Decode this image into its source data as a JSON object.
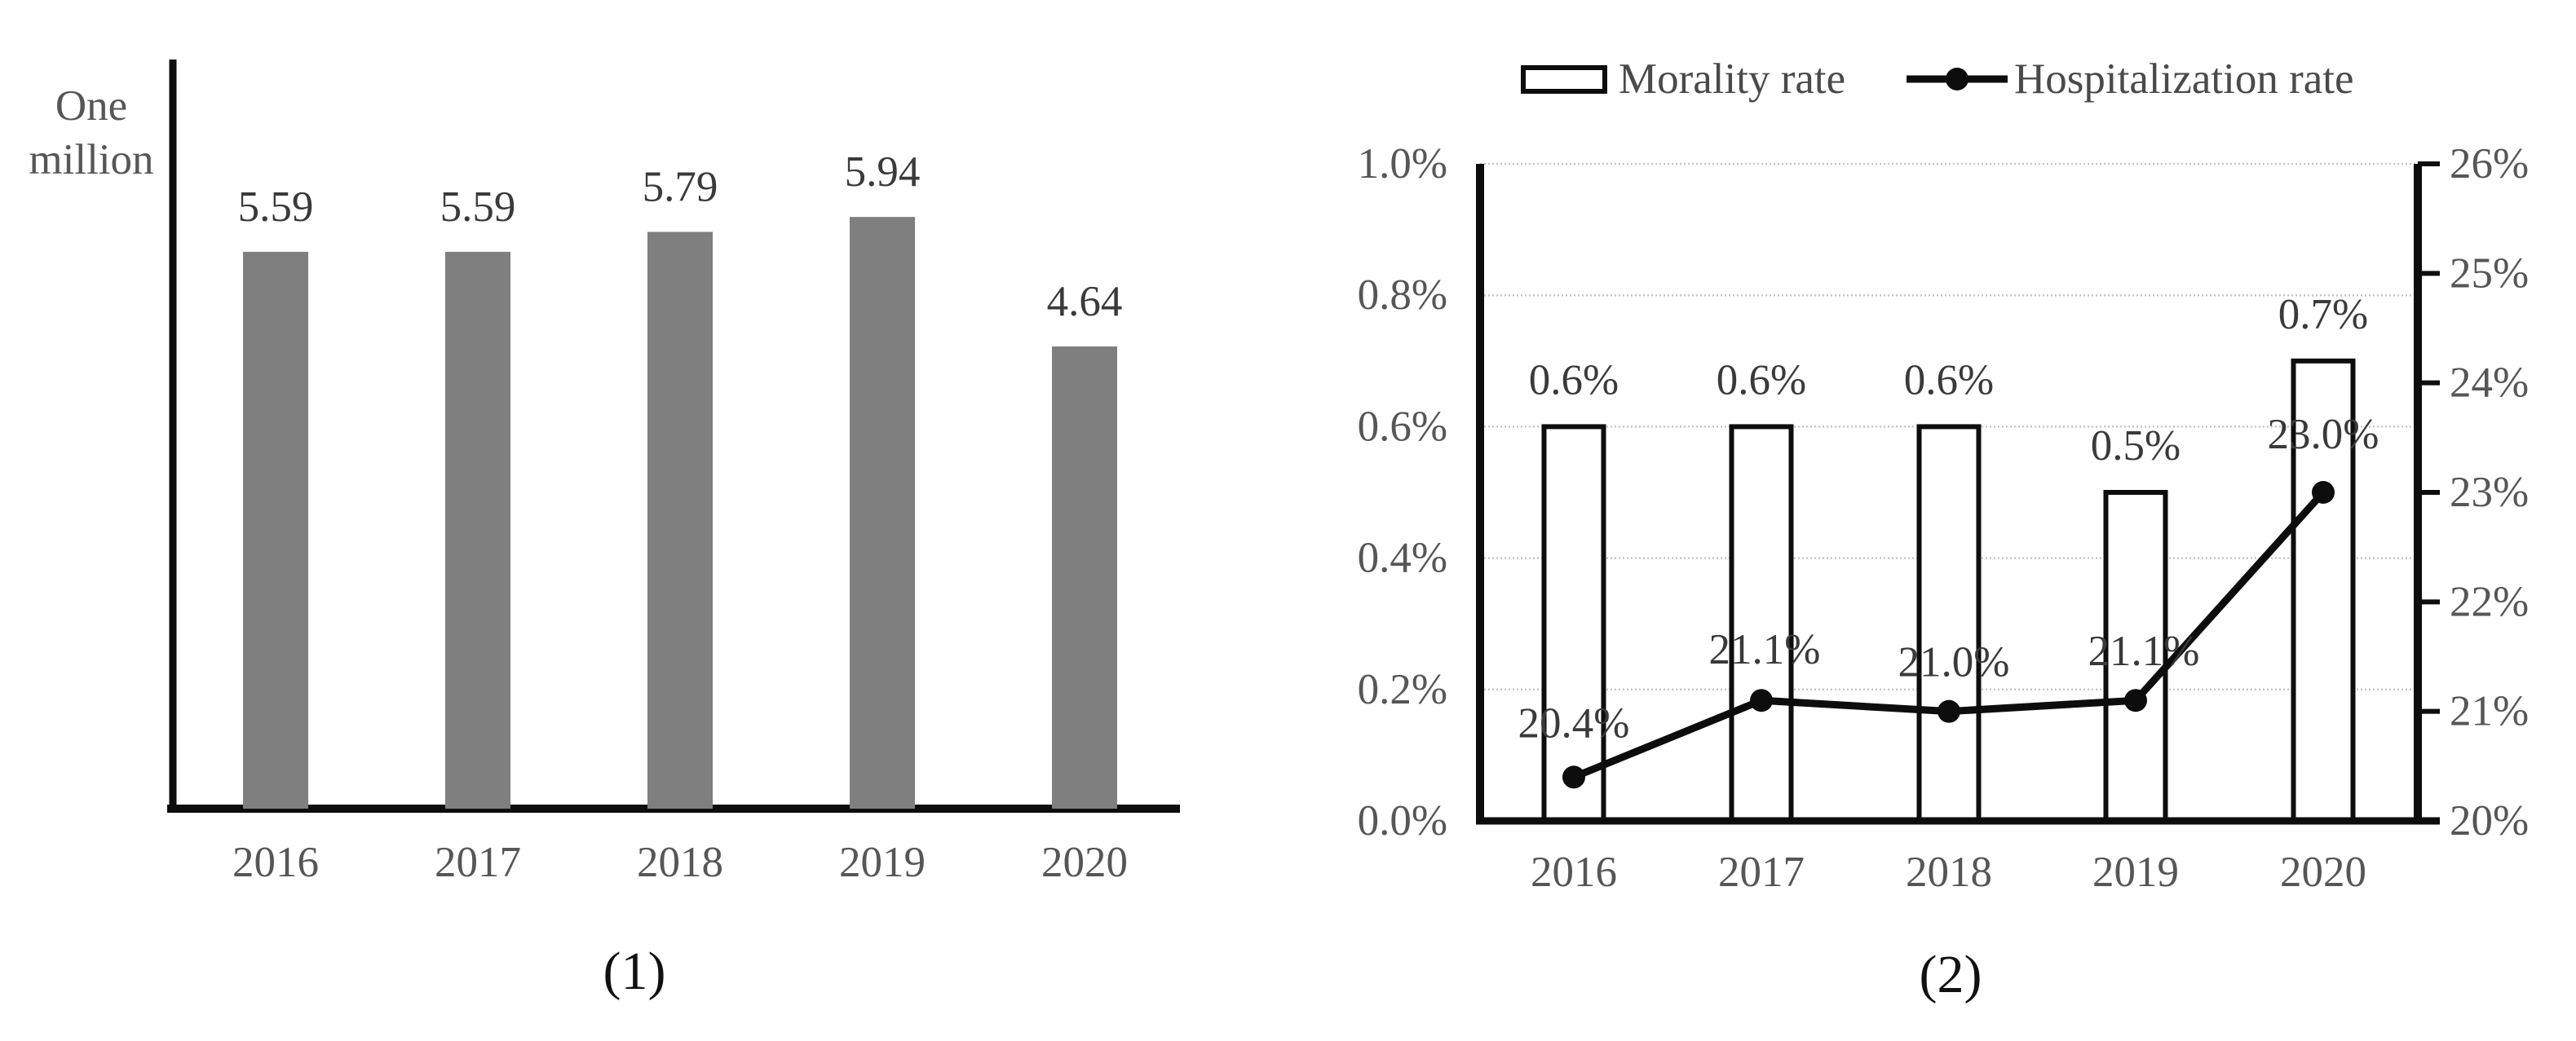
{
  "page": {
    "background": "#ffffff"
  },
  "chart_data": [
    {
      "type": "bar",
      "caption": "(1)",
      "y_unit_label_lines": [
        "One",
        "million"
      ],
      "categories": [
        "2016",
        "2017",
        "2018",
        "2019",
        "2020"
      ],
      "values": [
        5.59,
        5.59,
        5.79,
        5.94,
        4.64
      ],
      "data_labels": [
        "5.59",
        "5.59",
        "5.79",
        "5.94",
        "4.64"
      ],
      "bar_color": "#7f7f7f",
      "axis_color": "#0d0d0d",
      "label_color": "#3a3a3a",
      "tick_label_color": "#565656",
      "xlabel": "",
      "ylabel": "One million",
      "ylim": [
        0,
        7.5
      ],
      "grid": false,
      "legend_position": "none"
    },
    {
      "type": "combo-bar-line",
      "caption": "(2)",
      "categories": [
        "2016",
        "2017",
        "2018",
        "2019",
        "2020"
      ],
      "series": [
        {
          "name": "Morality rate",
          "type": "bar",
          "axis": "left",
          "values": [
            0.6,
            0.6,
            0.6,
            0.5,
            0.7
          ],
          "data_labels": [
            "0.6%",
            "0.6%",
            "0.6%",
            "0.5%",
            "0.7%"
          ],
          "fill": "#ffffff",
          "stroke": "#0d0d0d"
        },
        {
          "name": "Hospitalization rate",
          "type": "line",
          "axis": "right",
          "values": [
            20.4,
            21.1,
            21.0,
            21.1,
            23.0
          ],
          "data_labels": [
            "20.4%",
            "21.1%",
            "21.0%",
            "21.1%",
            "23.0%"
          ],
          "color": "#0d0d0d",
          "marker": "circle"
        }
      ],
      "left_axis": {
        "min": 0.0,
        "max": 1.0,
        "tick_labels": [
          "1.0%",
          "0.8%",
          "0.6%",
          "0.4%",
          "0.2%",
          "0.0%"
        ]
      },
      "right_axis": {
        "min": 20,
        "max": 26,
        "tick_labels": [
          "26%",
          "25%",
          "24%",
          "23%",
          "22%",
          "21%",
          "20%"
        ]
      },
      "gridline_color": "#c6c6c6",
      "label_color": "#3a3a3a",
      "tick_label_color": "#565656",
      "legend_text_color": "#4a4a4a",
      "grid": true,
      "legend_position": "top"
    }
  ]
}
